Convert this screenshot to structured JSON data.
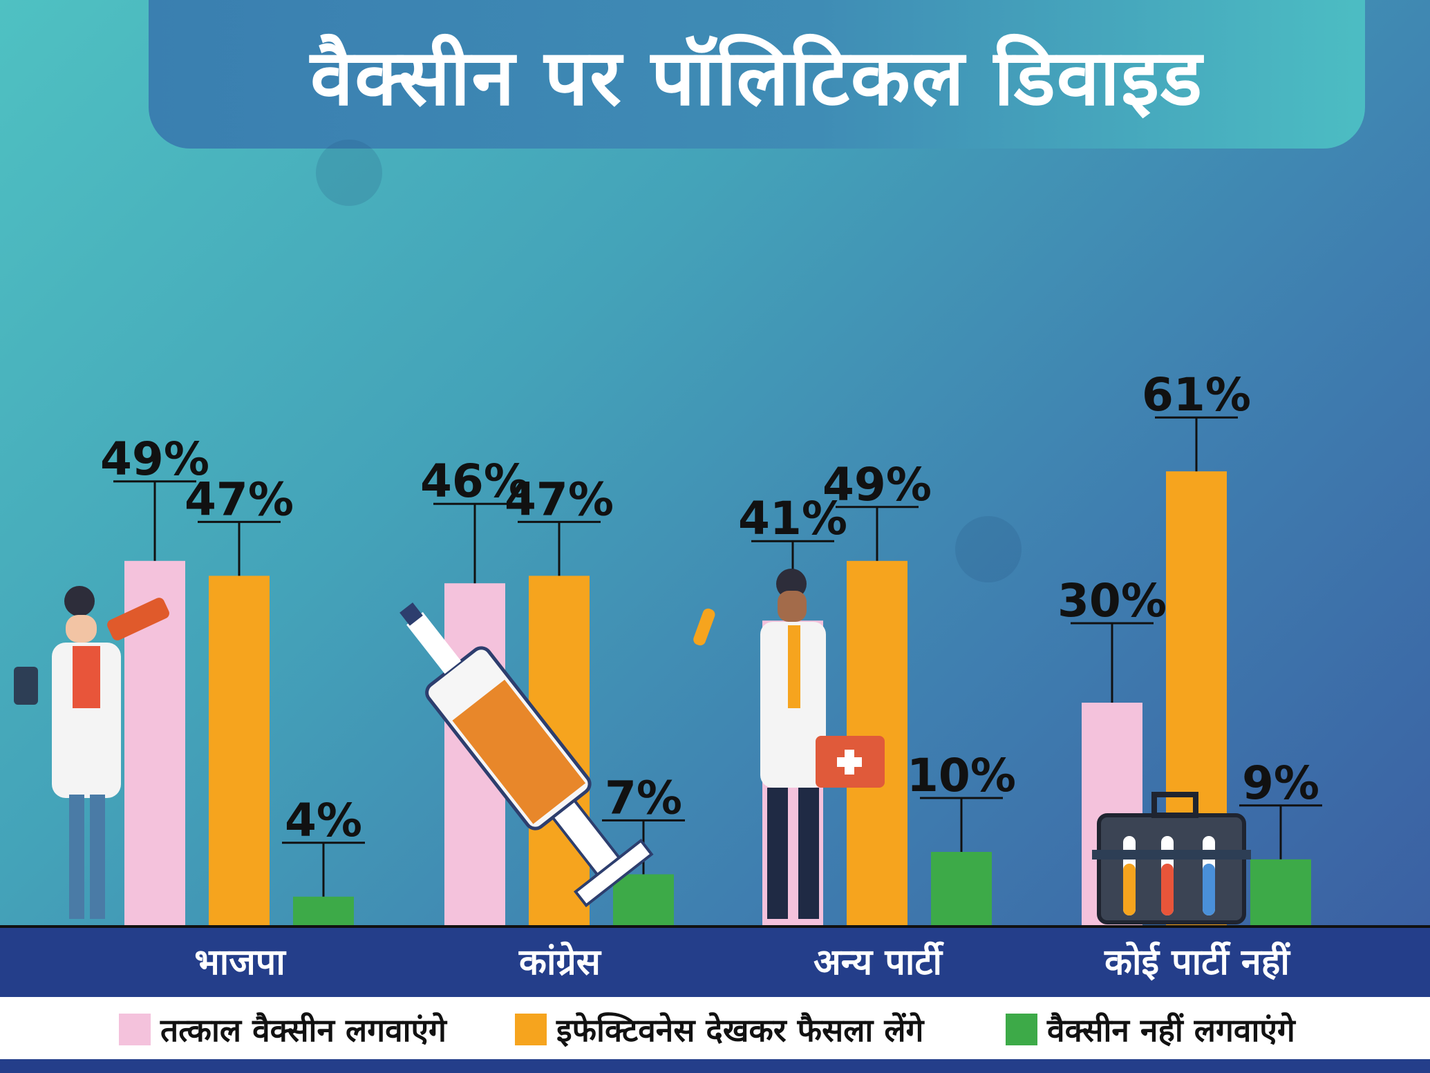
{
  "title": "वैक्सीन पर पॉलिटिकल डिवाइड",
  "colors": {
    "immediate": "#f4c2dc",
    "wait": "#f6a41e",
    "no": "#3daa48",
    "band": "#243e8a"
  },
  "legend": [
    {
      "label": "तत्काल वैक्सीन लगवाएंगे",
      "color": "#f4c2dc"
    },
    {
      "label": "इफेक्टिवनेस देखकर फैसला लेंगे",
      "color": "#f6a41e"
    },
    {
      "label": "वैक्सीन नहीं लगवाएंगे",
      "color": "#3daa48"
    }
  ],
  "chart_data": {
    "type": "bar",
    "categories": [
      "भाजपा",
      "कांग्रेस",
      "अन्य पार्टी",
      "कोई पार्टी नहीं"
    ],
    "series": [
      {
        "name": "तत्काल वैक्सीन लगवाएंगे",
        "values": [
          49,
          46,
          41,
          30
        ],
        "labels": [
          "49%",
          "46%",
          "41%",
          "30%"
        ]
      },
      {
        "name": "इफेक्टिवनेस देखकर फैसला लेंगे",
        "values": [
          47,
          47,
          49,
          61
        ],
        "labels": [
          "47%",
          "47%",
          "49%",
          "61%"
        ]
      },
      {
        "name": "वैक्सीन नहीं लगवाएंगे",
        "values": [
          4,
          7,
          10,
          9
        ],
        "labels": [
          "4%",
          "7%",
          "10%",
          "9%"
        ]
      }
    ],
    "ylim": [
      0,
      100
    ],
    "grid": false,
    "legend_position": "bottom"
  }
}
